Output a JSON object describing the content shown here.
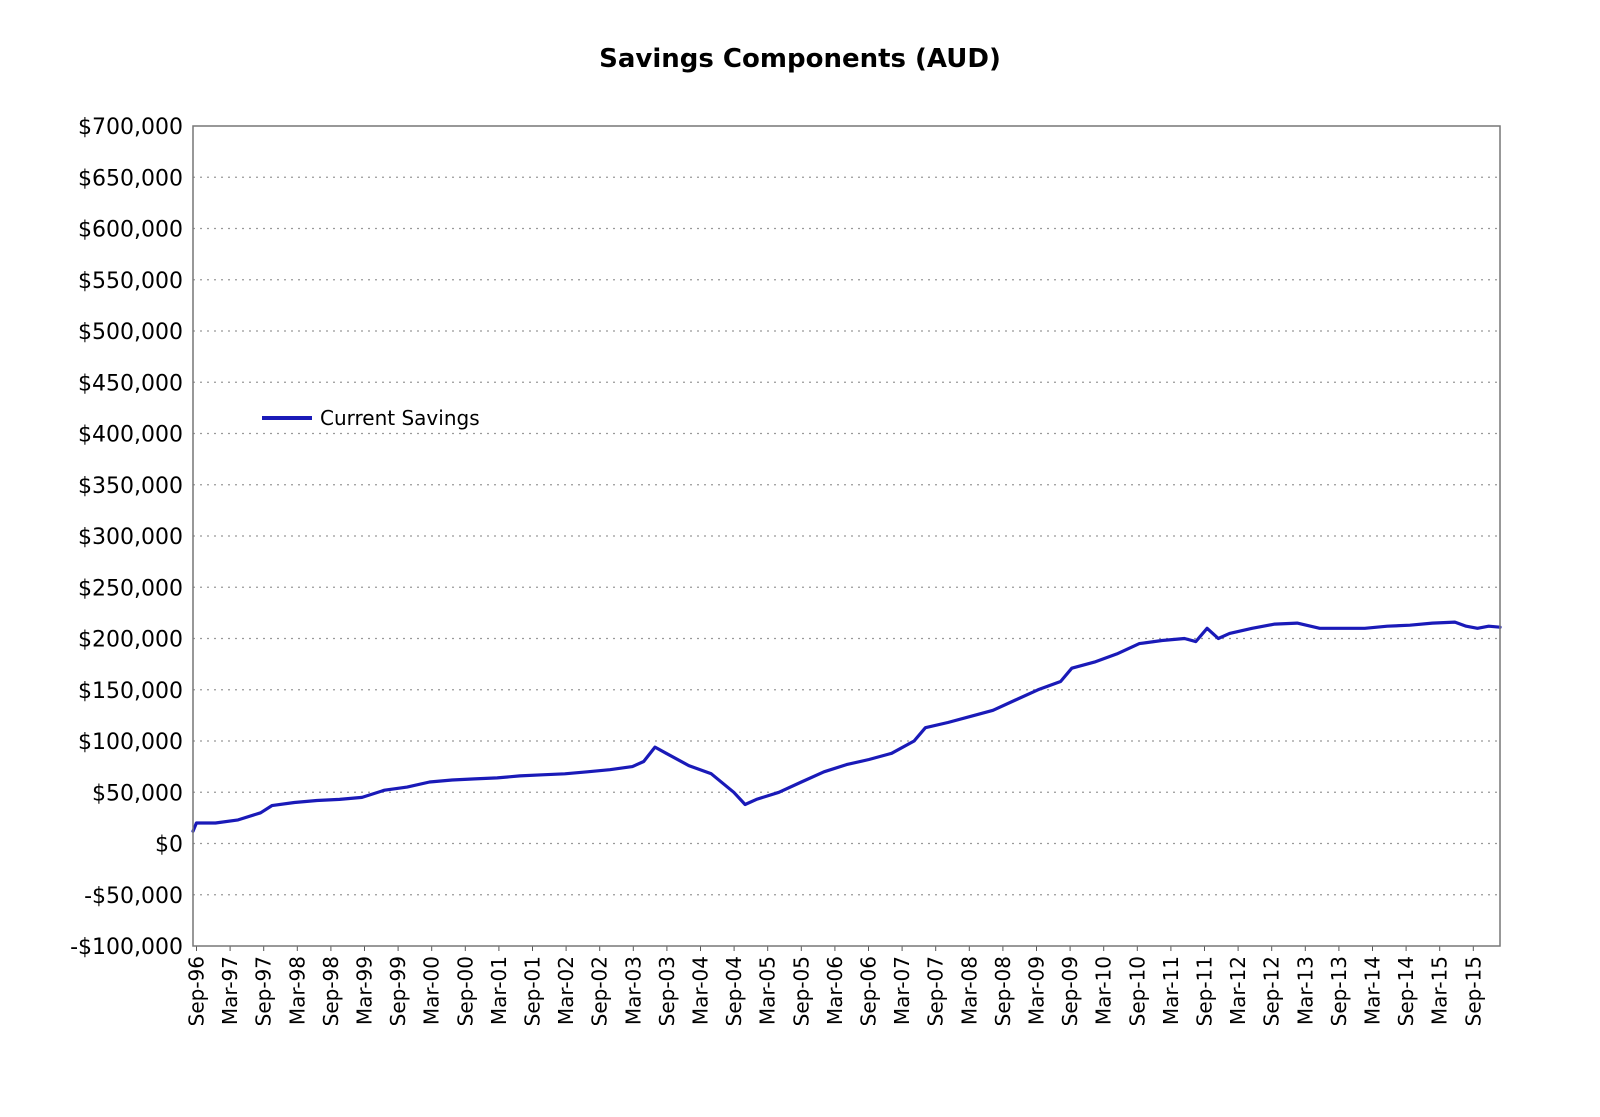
{
  "chart_data": {
    "type": "line",
    "title": "Savings Components (AUD)",
    "xlabel": "",
    "ylabel": "",
    "ylim": [
      -100000,
      700000
    ],
    "yticks": [
      -100000,
      -50000,
      0,
      50000,
      100000,
      150000,
      200000,
      250000,
      300000,
      350000,
      400000,
      450000,
      500000,
      550000,
      600000,
      650000,
      700000
    ],
    "ytick_labels": [
      "-$100,000",
      "-$50,000",
      "$0",
      "$50,000",
      "$100,000",
      "$150,000",
      "$200,000",
      "$250,000",
      "$300,000",
      "$350,000",
      "$400,000",
      "$450,000",
      "$500,000",
      "$550,000",
      "$600,000",
      "$650,000",
      "$700,000"
    ],
    "x_labels": [
      "Sep-96",
      "Mar-97",
      "Sep-97",
      "Mar-98",
      "Sep-98",
      "Mar-99",
      "Sep-99",
      "Mar-00",
      "Sep-00",
      "Mar-01",
      "Sep-01",
      "Mar-02",
      "Sep-02",
      "Mar-03",
      "Sep-03",
      "Mar-04",
      "Sep-04",
      "Mar-05",
      "Sep-05",
      "Mar-06",
      "Sep-06",
      "Mar-07",
      "Sep-07",
      "Mar-08",
      "Sep-08",
      "Mar-09",
      "Sep-09",
      "Mar-10",
      "Sep-10",
      "Mar-11",
      "Sep-11",
      "Mar-12",
      "Sep-12",
      "Mar-13",
      "Sep-13",
      "Mar-14",
      "Sep-14",
      "Mar-15",
      "Sep-15"
    ],
    "x_range": [
      0,
      116
    ],
    "grid": {
      "horizontal": true,
      "vertical": false
    },
    "legend_position": "left",
    "series": [
      {
        "name": "Current Savings",
        "color": "#1a1ab8",
        "points": [
          [
            0,
            12000
          ],
          [
            0.3,
            20000
          ],
          [
            2,
            20000
          ],
          [
            4,
            23000
          ],
          [
            6,
            30000
          ],
          [
            7,
            37000
          ],
          [
            9,
            40000
          ],
          [
            11,
            42000
          ],
          [
            13,
            43000
          ],
          [
            15,
            45000
          ],
          [
            17,
            52000
          ],
          [
            19,
            55000
          ],
          [
            21,
            60000
          ],
          [
            23,
            62000
          ],
          [
            25,
            63000
          ],
          [
            27,
            64000
          ],
          [
            29,
            66000
          ],
          [
            31,
            67000
          ],
          [
            33,
            68000
          ],
          [
            35,
            70000
          ],
          [
            37,
            72000
          ],
          [
            39,
            75000
          ],
          [
            40,
            80000
          ],
          [
            41,
            94000
          ],
          [
            42,
            88000
          ],
          [
            44,
            76000
          ],
          [
            46,
            68000
          ],
          [
            48,
            50000
          ],
          [
            49,
            38000
          ],
          [
            50,
            43000
          ],
          [
            52,
            50000
          ],
          [
            54,
            60000
          ],
          [
            56,
            70000
          ],
          [
            58,
            77000
          ],
          [
            60,
            82000
          ],
          [
            62,
            88000
          ],
          [
            64,
            100000
          ],
          [
            65,
            113000
          ],
          [
            67,
            118000
          ],
          [
            69,
            124000
          ],
          [
            71,
            130000
          ],
          [
            73,
            140000
          ],
          [
            75,
            150000
          ],
          [
            77,
            158000
          ],
          [
            78,
            171000
          ],
          [
            80,
            177000
          ],
          [
            82,
            185000
          ],
          [
            84,
            195000
          ],
          [
            86,
            198000
          ],
          [
            88,
            200000
          ],
          [
            89,
            197000
          ],
          [
            90,
            210000
          ],
          [
            91,
            200000
          ],
          [
            92,
            205000
          ],
          [
            94,
            210000
          ],
          [
            96,
            214000
          ],
          [
            98,
            215000
          ],
          [
            100,
            210000
          ],
          [
            102,
            210000
          ],
          [
            104,
            210000
          ],
          [
            106,
            212000
          ],
          [
            108,
            213000
          ],
          [
            110,
            215000
          ],
          [
            112,
            216000
          ],
          [
            113,
            212000
          ],
          [
            114,
            210000
          ],
          [
            115,
            212000
          ],
          [
            116,
            211000
          ]
        ],
        "note_ignore": true
      }
    ]
  }
}
